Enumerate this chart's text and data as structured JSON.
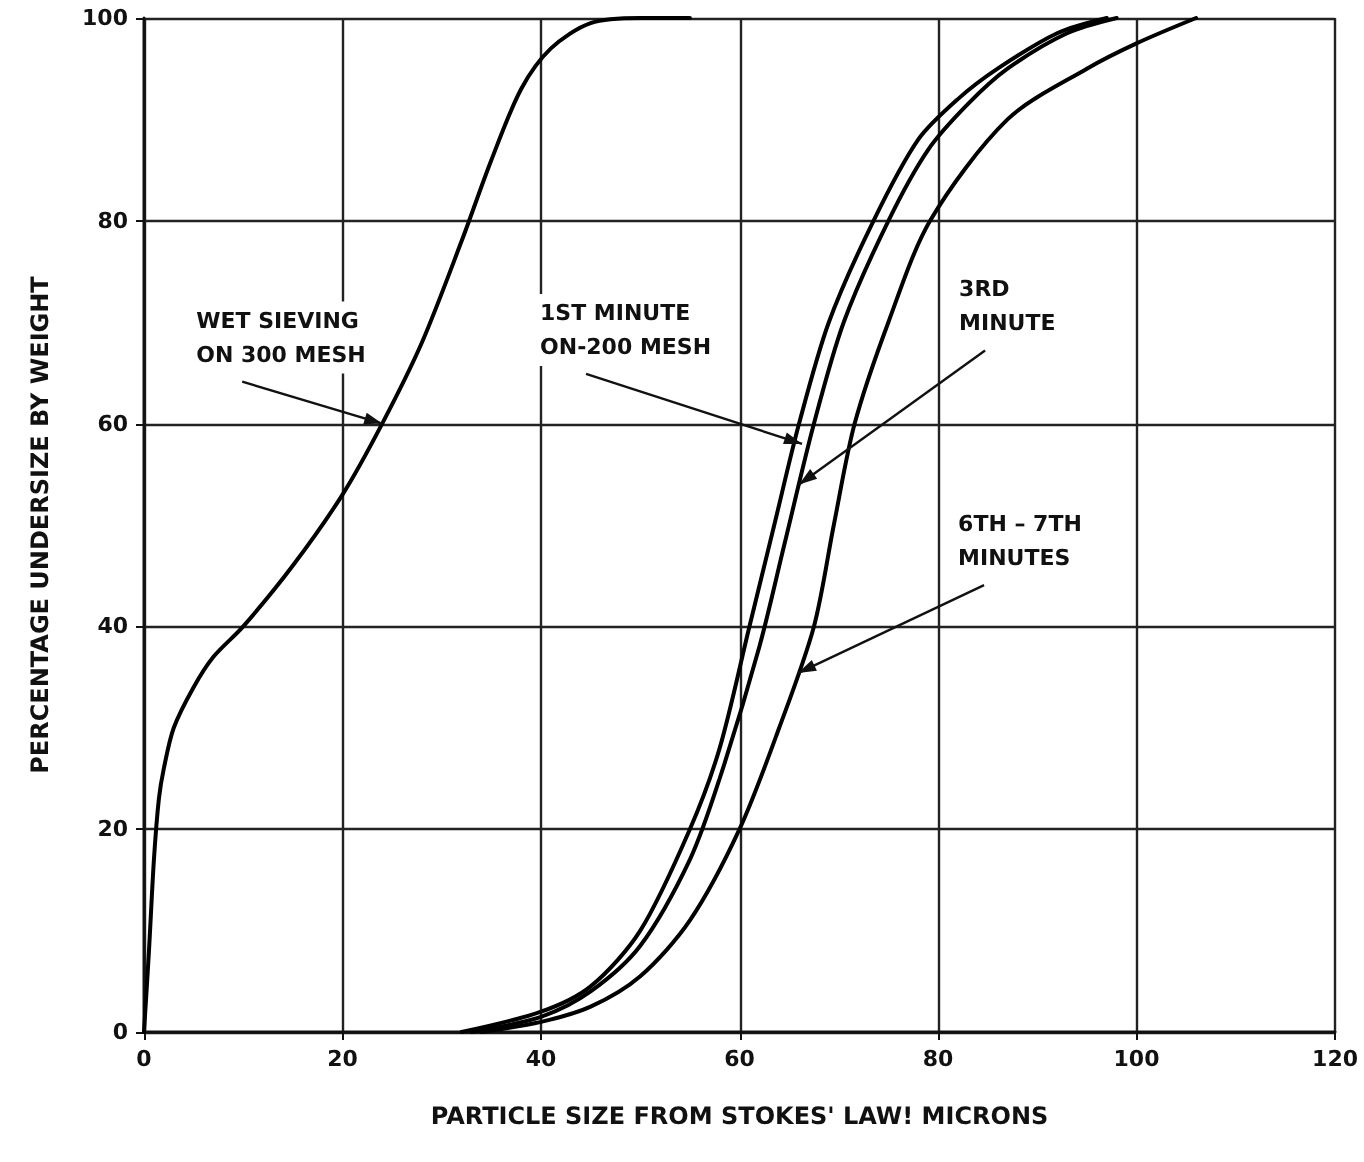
{
  "chart_data": {
    "type": "line",
    "xlabel": "PARTICLE SIZE FROM STOKES' LAW! MICRONS",
    "ylabel": "PERCENTAGE UNDERSIZE BY WEIGHT",
    "xlim": [
      0,
      120
    ],
    "xticks": [
      0,
      20,
      40,
      60,
      80,
      100,
      120
    ],
    "ylim": [
      0,
      100
    ],
    "yticks": [
      0,
      20,
      40,
      60,
      80,
      100
    ],
    "grid": true,
    "marker": "none",
    "line_style": "solid",
    "series": [
      {
        "color": "#000000",
        "x": [
          0,
          0.5,
          1,
          1.5,
          2,
          3,
          5,
          7,
          10,
          15,
          20,
          24,
          28,
          32,
          35,
          38,
          41,
          45,
          50,
          55
        ],
        "values": [
          0,
          8,
          17,
          23,
          26,
          30,
          34,
          37,
          40,
          46,
          53,
          60,
          68,
          78,
          86,
          93,
          97,
          99.5,
          100,
          100
        ]
      },
      {
        "color": "#000000",
        "x": [
          32,
          40,
          45,
          50,
          55,
          58,
          61,
          63.5,
          66,
          69,
          73.5,
          78,
          82,
          86,
          92,
          97
        ],
        "values": [
          0,
          2,
          4.5,
          10,
          20,
          28,
          40,
          50,
          60,
          70,
          80,
          88,
          92,
          95,
          98.5,
          100
        ]
      },
      {
        "color": "#000000",
        "x": [
          33,
          40,
          45,
          50,
          55,
          58,
          62,
          64.5,
          67.5,
          70.5,
          75,
          79,
          83,
          87,
          93,
          98
        ],
        "values": [
          0,
          1.5,
          4,
          8.5,
          17,
          25,
          38,
          48,
          60,
          70,
          80,
          87,
          91.5,
          95,
          98.5,
          100
        ]
      },
      {
        "color": "#000000",
        "x": [
          34,
          40,
          45,
          50,
          55,
          60,
          64,
          67.5,
          69.5,
          71.6,
          75,
          79.2,
          87,
          95,
          100,
          106
        ],
        "values": [
          0,
          1,
          2.5,
          5.5,
          11,
          20,
          30,
          40,
          50,
          60,
          70,
          80,
          90,
          95,
          97.5,
          100
        ]
      }
    ],
    "annotations": [
      {
        "text": "WET SIEVING\nON 300 MESH",
        "x": 24,
        "y": 60
      },
      {
        "text": "1ST MINUTE\nON-200 MESH",
        "x": 66.3,
        "y": 58
      },
      {
        "text": "3RD\nMINUTE",
        "x": 66,
        "y": 54
      },
      {
        "text": "6TH – 7TH\nMINUTES",
        "x": 65.9,
        "y": 35.4
      }
    ]
  }
}
